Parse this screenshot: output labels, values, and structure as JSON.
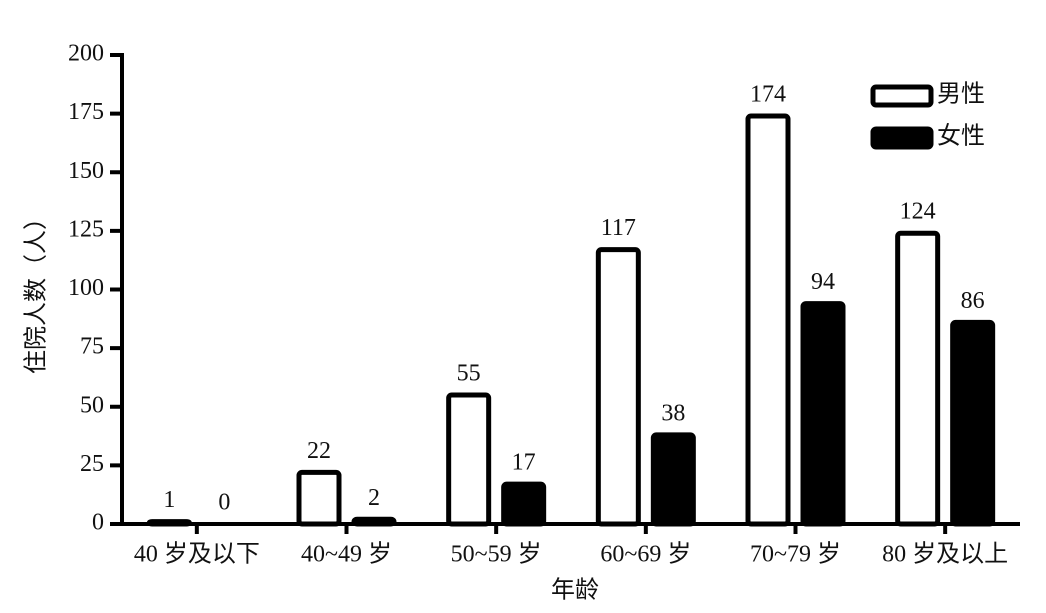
{
  "chart_data": {
    "type": "bar",
    "x_label": "年龄",
    "y_label": "住院人数（人）",
    "categories": [
      "40 岁及以下",
      "40~49 岁",
      "50~59 岁",
      "60~69 岁",
      "70~79 岁",
      "80 岁及以上"
    ],
    "series": [
      {
        "name": "男性",
        "color": "#ffffff",
        "values": [
          1,
          22,
          55,
          117,
          174,
          124
        ]
      },
      {
        "name": "女性",
        "color": "#000000",
        "values": [
          0,
          2,
          17,
          38,
          94,
          86
        ]
      }
    ],
    "ylim": [
      0,
      200
    ],
    "yticks": [
      0,
      25,
      50,
      75,
      100,
      125,
      150,
      175,
      200
    ],
    "grid": false,
    "legend": "upper right"
  }
}
